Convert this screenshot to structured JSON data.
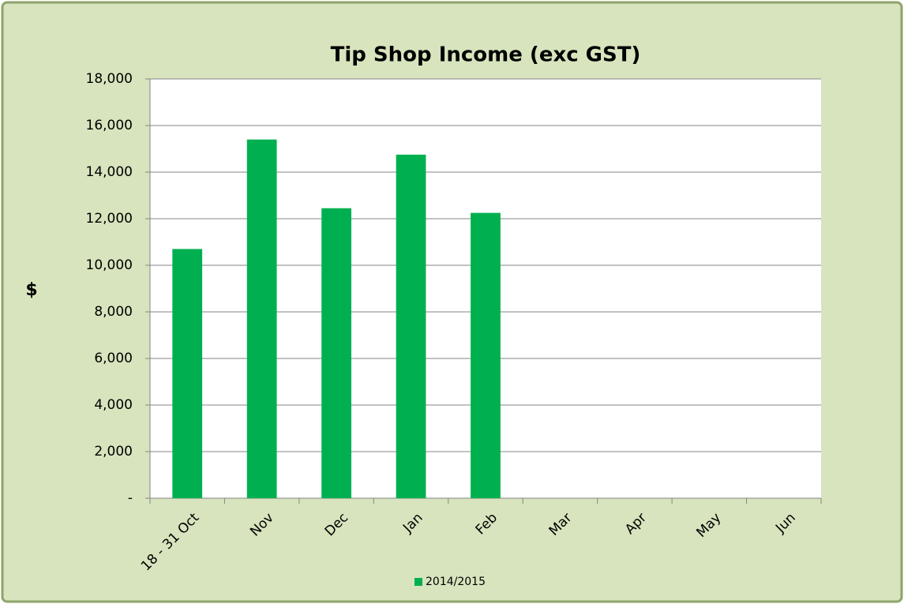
{
  "chart_data": {
    "type": "bar",
    "title": "Tip Shop Income (exc GST)",
    "y_label": "$",
    "categories": [
      "18 - 31 Oct",
      "Nov",
      "Dec",
      "Jan",
      "Feb",
      "Mar",
      "Apr",
      "May",
      "Jun"
    ],
    "series": [
      {
        "name": "2014/2015",
        "color": "#00b050",
        "values": [
          10700,
          15400,
          12450,
          14750,
          12250,
          null,
          null,
          null,
          null
        ]
      }
    ],
    "ylim": [
      0,
      18000
    ],
    "yticks": [
      {
        "value": 0,
        "label": "-"
      },
      {
        "value": 2000,
        "label": "2,000"
      },
      {
        "value": 4000,
        "label": "4,000"
      },
      {
        "value": 6000,
        "label": "6,000"
      },
      {
        "value": 8000,
        "label": "8,000"
      },
      {
        "value": 10000,
        "label": "10,000"
      },
      {
        "value": 12000,
        "label": "12,000"
      },
      {
        "value": 14000,
        "label": "14,000"
      },
      {
        "value": 16000,
        "label": "16,000"
      },
      {
        "value": 18000,
        "label": "18,000"
      }
    ],
    "grid": true,
    "legend": "bottom"
  }
}
